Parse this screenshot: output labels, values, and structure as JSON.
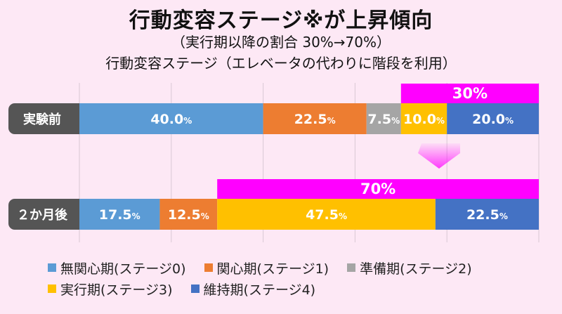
{
  "title": "行動変容ステージ※が上昇傾向",
  "subtitle": "（実行期以降の割合 30%→70%）",
  "subtitle2": "行動変容ステージ（エレベータの代わりに階段を利用）",
  "chart_data": {
    "type": "bar",
    "orientation": "horizontal-stacked-100",
    "categories": [
      "実験前",
      "２か月後"
    ],
    "series": [
      {
        "name": "無関心期(ステージ0)",
        "color": "#5b9bd5",
        "values": [
          40.0,
          17.5
        ]
      },
      {
        "name": "関心期(ステージ1)",
        "color": "#ed7d31",
        "values": [
          22.5,
          12.5
        ]
      },
      {
        "name": "準備期(ステージ2)",
        "color": "#a5a5a5",
        "values": [
          7.5,
          0
        ]
      },
      {
        "name": "実行期(ステージ3)",
        "color": "#ffc000",
        "values": [
          10.0,
          47.5
        ]
      },
      {
        "name": "維持期(ステージ4)",
        "color": "#4472c4",
        "values": [
          20.0,
          22.5
        ]
      }
    ],
    "labels": [
      [
        {
          "num": "40.0",
          "unit": "%"
        },
        {
          "num": "22.5",
          "unit": "%"
        },
        {
          "num": "7.5",
          "unit": "%"
        },
        {
          "num": "10.0",
          "unit": "%"
        },
        {
          "num": "20.0",
          "unit": "%"
        }
      ],
      [
        {
          "num": "17.5",
          "unit": "%"
        },
        {
          "num": "12.5",
          "unit": "%"
        },
        null,
        {
          "num": "47.5",
          "unit": "%"
        },
        {
          "num": "22.5",
          "unit": "%"
        }
      ]
    ],
    "highlights": [
      {
        "category": "実験前",
        "label": "30%",
        "value": 30
      },
      {
        "category": "２か月後",
        "label": "70%",
        "value": 70
      }
    ],
    "xlim": [
      0,
      100
    ],
    "colors": {
      "highlight": "#ff00ff",
      "category_box": "#555555",
      "gridline": "#d9c8d4"
    }
  }
}
